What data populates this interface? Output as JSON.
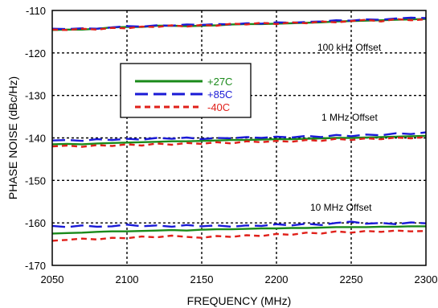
{
  "chart_data": {
    "type": "line",
    "title": "",
    "xlabel": "FREQUENCY (MHz)",
    "ylabel": "PHASE NOISE (dBc/Hz)",
    "xlim": [
      2050,
      2300
    ],
    "ylim": [
      -170,
      -110
    ],
    "x_ticks": [
      2050,
      2100,
      2150,
      2200,
      2250,
      2300
    ],
    "y_ticks": [
      -110,
      -120,
      -130,
      -140,
      -150,
      -160,
      -170
    ],
    "grid": true,
    "legend_position": "upper-left-center",
    "annotations": [
      "100 kHz Offset",
      "1 MHz Offset",
      "10 MHz Offset"
    ],
    "series": [
      {
        "name": "+27C",
        "color": "#1a8a1a",
        "style": "solid",
        "groups": [
          {
            "offset": "100 kHz Offset",
            "x": [
              2050,
              2060,
              2070,
              2080,
              2090,
              2100,
              2110,
              2120,
              2130,
              2140,
              2150,
              2160,
              2170,
              2180,
              2190,
              2200,
              2210,
              2220,
              2230,
              2240,
              2250,
              2260,
              2270,
              2280,
              2290,
              2300
            ],
            "y": [
              -114.6,
              -114.5,
              -114.5,
              -114.3,
              -114.0,
              -113.9,
              -113.9,
              -113.6,
              -113.6,
              -113.7,
              -113.6,
              -113.5,
              -113.3,
              -113.2,
              -113.2,
              -113.1,
              -113.0,
              -112.9,
              -112.8,
              -112.6,
              -112.5,
              -112.4,
              -112.3,
              -112.2,
              -112.1,
              -112.0
            ]
          },
          {
            "offset": "1 MHz Offset",
            "x": [
              2050,
              2060,
              2070,
              2080,
              2090,
              2100,
              2110,
              2120,
              2130,
              2140,
              2150,
              2160,
              2170,
              2180,
              2190,
              2200,
              2210,
              2220,
              2230,
              2240,
              2250,
              2260,
              2270,
              2280,
              2290,
              2300
            ],
            "y": [
              -141.5,
              -141.4,
              -141.5,
              -141.3,
              -141.2,
              -141.1,
              -141.0,
              -140.9,
              -140.8,
              -140.8,
              -140.7,
              -140.6,
              -140.5,
              -140.5,
              -140.4,
              -140.3,
              -140.3,
              -140.2,
              -140.1,
              -140.0,
              -140.0,
              -139.9,
              -139.8,
              -139.7,
              -139.6,
              -139.5
            ]
          },
          {
            "offset": "10 MHz Offset",
            "x": [
              2050,
              2060,
              2070,
              2080,
              2090,
              2100,
              2110,
              2120,
              2130,
              2140,
              2150,
              2160,
              2170,
              2180,
              2190,
              2200,
              2210,
              2220,
              2230,
              2240,
              2250,
              2260,
              2270,
              2280,
              2290,
              2300
            ],
            "y": [
              -162.5,
              -162.4,
              -162.3,
              -162.1,
              -162.0,
              -162.0,
              -161.9,
              -161.8,
              -161.7,
              -161.8,
              -161.6,
              -161.5,
              -161.5,
              -161.4,
              -161.3,
              -161.3,
              -161.2,
              -161.2,
              -161.1,
              -161.0,
              -161.0,
              -161.0,
              -160.9,
              -160.9,
              -160.8,
              -160.8
            ]
          }
        ]
      },
      {
        "name": "+85C",
        "color": "#1a1ad6",
        "style": "long-dash",
        "groups": [
          {
            "offset": "100 kHz Offset",
            "x": [
              2050,
              2060,
              2070,
              2080,
              2090,
              2100,
              2110,
              2120,
              2130,
              2140,
              2150,
              2160,
              2170,
              2180,
              2190,
              2200,
              2210,
              2220,
              2230,
              2240,
              2250,
              2260,
              2270,
              2280,
              2290,
              2300
            ],
            "y": [
              -114.3,
              -114.4,
              -114.2,
              -114.3,
              -114.0,
              -113.7,
              -113.8,
              -113.5,
              -113.6,
              -113.3,
              -113.4,
              -113.2,
              -113.3,
              -113.0,
              -113.1,
              -112.8,
              -112.9,
              -112.7,
              -112.6,
              -112.3,
              -112.4,
              -112.1,
              -112.2,
              -111.9,
              -111.7,
              -111.8
            ]
          },
          {
            "offset": "1 MHz Offset",
            "x": [
              2050,
              2060,
              2070,
              2080,
              2090,
              2100,
              2110,
              2120,
              2130,
              2140,
              2150,
              2160,
              2170,
              2180,
              2190,
              2200,
              2210,
              2220,
              2230,
              2240,
              2250,
              2260,
              2270,
              2280,
              2290,
              2300
            ],
            "y": [
              -140.6,
              -140.5,
              -140.7,
              -140.3,
              -140.5,
              -140.2,
              -140.4,
              -140.0,
              -140.2,
              -139.9,
              -140.3,
              -140.0,
              -140.1,
              -139.8,
              -140.0,
              -139.7,
              -139.9,
              -139.5,
              -139.8,
              -139.3,
              -139.6,
              -139.2,
              -139.4,
              -138.9,
              -139.1,
              -138.7
            ]
          },
          {
            "offset": "10 MHz Offset",
            "x": [
              2050,
              2060,
              2070,
              2080,
              2090,
              2100,
              2110,
              2120,
              2130,
              2140,
              2150,
              2160,
              2170,
              2180,
              2190,
              2200,
              2210,
              2220,
              2230,
              2240,
              2250,
              2260,
              2270,
              2280,
              2290,
              2300
            ],
            "y": [
              -160.7,
              -161.0,
              -160.6,
              -160.9,
              -160.8,
              -160.4,
              -160.8,
              -160.6,
              -160.9,
              -160.5,
              -160.8,
              -160.6,
              -160.9,
              -160.6,
              -160.7,
              -160.3,
              -160.6,
              -160.2,
              -160.5,
              -160.0,
              -159.7,
              -160.2,
              -160.0,
              -160.3,
              -159.9,
              -160.1
            ]
          }
        ]
      },
      {
        "name": "-40C",
        "color": "#e0201a",
        "style": "short-dash",
        "groups": [
          {
            "offset": "100 kHz Offset",
            "x": [
              2050,
              2060,
              2070,
              2080,
              2090,
              2100,
              2110,
              2120,
              2130,
              2140,
              2150,
              2160,
              2170,
              2180,
              2190,
              2200,
              2210,
              2220,
              2230,
              2240,
              2250,
              2260,
              2270,
              2280,
              2290,
              2300
            ],
            "y": [
              -114.5,
              -114.6,
              -114.3,
              -114.5,
              -114.1,
              -114.2,
              -113.8,
              -113.9,
              -113.5,
              -113.8,
              -113.4,
              -113.6,
              -113.1,
              -113.3,
              -112.9,
              -113.2,
              -112.8,
              -113.0,
              -112.6,
              -112.8,
              -112.5,
              -112.2,
              -112.6,
              -112.0,
              -112.3,
              -112.1
            ]
          },
          {
            "offset": "1 MHz Offset",
            "x": [
              2050,
              2060,
              2070,
              2080,
              2090,
              2100,
              2110,
              2120,
              2130,
              2140,
              2150,
              2160,
              2170,
              2180,
              2190,
              2200,
              2210,
              2220,
              2230,
              2240,
              2250,
              2260,
              2270,
              2280,
              2290,
              2300
            ],
            "y": [
              -142.0,
              -141.8,
              -142.1,
              -141.7,
              -141.9,
              -141.5,
              -141.8,
              -141.3,
              -141.6,
              -141.2,
              -141.4,
              -141.0,
              -141.3,
              -140.8,
              -141.0,
              -140.7,
              -140.9,
              -140.5,
              -140.7,
              -140.2,
              -140.5,
              -140.1,
              -140.3,
              -139.9,
              -140.1,
              -139.8
            ]
          },
          {
            "offset": "10 MHz Offset",
            "x": [
              2050,
              2060,
              2070,
              2080,
              2090,
              2100,
              2110,
              2120,
              2130,
              2140,
              2150,
              2160,
              2170,
              2180,
              2190,
              2200,
              2210,
              2220,
              2230,
              2240,
              2250,
              2260,
              2270,
              2280,
              2290,
              2300
            ],
            "y": [
              -164.2,
              -164.0,
              -163.7,
              -163.9,
              -163.5,
              -163.6,
              -163.2,
              -163.4,
              -163.0,
              -163.3,
              -163.5,
              -163.1,
              -163.3,
              -162.9,
              -163.1,
              -162.6,
              -162.8,
              -162.3,
              -162.5,
              -162.0,
              -162.3,
              -161.9,
              -162.1,
              -161.8,
              -162.0,
              -161.9
            ]
          }
        ]
      }
    ]
  }
}
